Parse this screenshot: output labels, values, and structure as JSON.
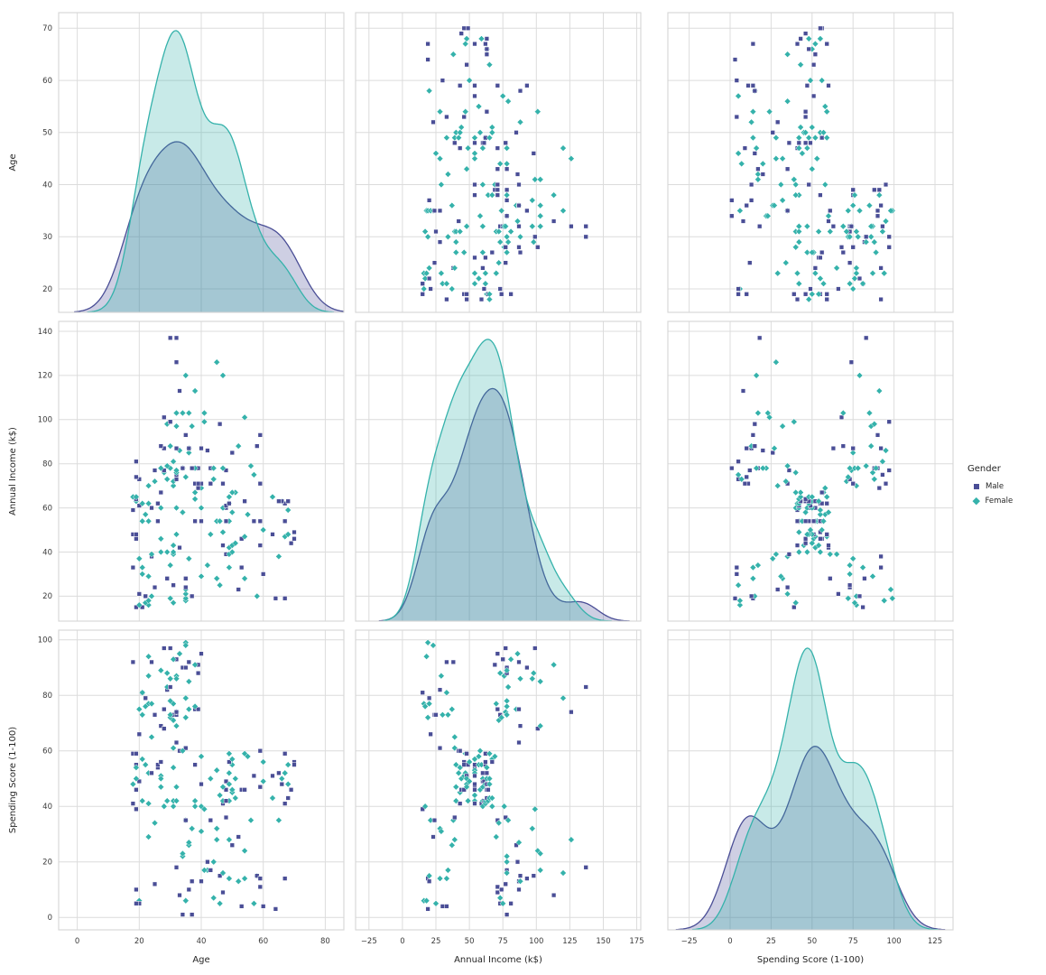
{
  "legend": {
    "title": "Gender",
    "entries": [
      {
        "label": "Male",
        "marker": "square"
      },
      {
        "label": "Female",
        "marker": "diamond"
      }
    ]
  },
  "style": {
    "male_color": "#4a4e96",
    "female_color": "#35b2ab",
    "grid_color": "#dcdcdc",
    "spine_color": "#d5d5d5",
    "text_color": "#3a3a3a",
    "label_color": "#262626",
    "kde_fill_alpha": 0.27
  },
  "chart_data": {
    "type": "scatter",
    "subtype": "pairplot-scatter-matrix",
    "description": "3x3 seaborn-style pairplot of customers: scatter plots off-diagonal, filled KDE curves on the diagonal, colored by Gender (Male=dark blue squares, Female=teal diamonds).",
    "hue_title": "Gender",
    "classes": [
      {
        "code": "M",
        "label": "Male",
        "marker": "square"
      },
      {
        "code": "F",
        "label": "Female",
        "marker": "diamond"
      }
    ],
    "variables": [
      {
        "key": "age",
        "label": "Age",
        "ticks": [
          0,
          20,
          40,
          60,
          80
        ],
        "axis_range": [
          -6,
          86
        ],
        "row_ticks": [
          20,
          30,
          40,
          50,
          60,
          70
        ],
        "row_range": [
          15.5,
          73.0
        ]
      },
      {
        "key": "income",
        "label": "Annual Income (k$)",
        "ticks": [
          -25,
          0,
          25,
          50,
          75,
          100,
          125,
          150,
          175
        ],
        "axis_range": [
          -35,
          178
        ],
        "row_ticks": [
          20,
          40,
          60,
          80,
          100,
          120,
          140
        ],
        "row_range": [
          8.7,
          144.5
        ]
      },
      {
        "key": "score",
        "label": "Spending Score (1-100)",
        "ticks": [
          -25,
          0,
          25,
          50,
          75,
          100,
          125
        ],
        "axis_range": [
          -38,
          136
        ],
        "row_ticks": [
          0,
          20,
          40,
          60,
          80,
          100
        ],
        "row_range": [
          -4.5,
          103.5
        ]
      }
    ],
    "columns": [
      "gender",
      "age",
      "income",
      "score"
    ],
    "records": [
      [
        "M",
        19,
        15,
        39
      ],
      [
        "M",
        21,
        15,
        81
      ],
      [
        "F",
        20,
        16,
        6
      ],
      [
        "F",
        23,
        16,
        77
      ],
      [
        "F",
        31,
        17,
        40
      ],
      [
        "F",
        22,
        17,
        76
      ],
      [
        "F",
        35,
        18,
        6
      ],
      [
        "F",
        23,
        18,
        94
      ],
      [
        "M",
        64,
        19,
        3
      ],
      [
        "F",
        30,
        19,
        72
      ],
      [
        "M",
        67,
        19,
        14
      ],
      [
        "F",
        35,
        19,
        99
      ],
      [
        "F",
        58,
        20,
        15
      ],
      [
        "F",
        24,
        20,
        77
      ],
      [
        "M",
        37,
        20,
        13
      ],
      [
        "M",
        22,
        20,
        79
      ],
      [
        "F",
        35,
        21,
        35
      ],
      [
        "M",
        20,
        21,
        66
      ],
      [
        "M",
        52,
        23,
        29
      ],
      [
        "F",
        35,
        23,
        98
      ],
      [
        "M",
        35,
        24,
        35
      ],
      [
        "M",
        25,
        24,
        73
      ],
      [
        "F",
        46,
        25,
        5
      ],
      [
        "M",
        31,
        25,
        73
      ],
      [
        "F",
        54,
        28,
        14
      ],
      [
        "M",
        29,
        28,
        82
      ],
      [
        "F",
        45,
        28,
        32
      ],
      [
        "M",
        35,
        28,
        61
      ],
      [
        "F",
        40,
        29,
        31
      ],
      [
        "F",
        23,
        29,
        87
      ],
      [
        "M",
        60,
        30,
        4
      ],
      [
        "F",
        21,
        30,
        73
      ],
      [
        "M",
        53,
        33,
        4
      ],
      [
        "M",
        18,
        33,
        92
      ],
      [
        "F",
        49,
        33,
        14
      ],
      [
        "F",
        21,
        33,
        81
      ],
      [
        "F",
        42,
        34,
        17
      ],
      [
        "F",
        30,
        34,
        73
      ],
      [
        "F",
        36,
        37,
        26
      ],
      [
        "F",
        20,
        37,
        75
      ],
      [
        "F",
        65,
        38,
        35
      ],
      [
        "M",
        24,
        38,
        92
      ],
      [
        "M",
        48,
        39,
        36
      ],
      [
        "F",
        31,
        39,
        61
      ],
      [
        "F",
        49,
        39,
        28
      ],
      [
        "F",
        24,
        39,
        65
      ],
      [
        "F",
        50,
        40,
        55
      ],
      [
        "F",
        27,
        40,
        47
      ],
      [
        "F",
        29,
        40,
        42
      ],
      [
        "F",
        31,
        40,
        42
      ],
      [
        "F",
        49,
        42,
        52
      ],
      [
        "M",
        33,
        42,
        60
      ],
      [
        "F",
        31,
        43,
        54
      ],
      [
        "M",
        59,
        43,
        60
      ],
      [
        "F",
        50,
        43,
        45
      ],
      [
        "M",
        47,
        43,
        41
      ],
      [
        "F",
        51,
        44,
        50
      ],
      [
        "M",
        69,
        44,
        46
      ],
      [
        "F",
        27,
        46,
        51
      ],
      [
        "M",
        53,
        46,
        46
      ],
      [
        "M",
        70,
        46,
        56
      ],
      [
        "M",
        19,
        46,
        55
      ],
      [
        "F",
        67,
        47,
        52
      ],
      [
        "F",
        54,
        47,
        59
      ],
      [
        "M",
        63,
        48,
        51
      ],
      [
        "M",
        18,
        48,
        59
      ],
      [
        "F",
        43,
        48,
        50
      ],
      [
        "F",
        68,
        48,
        48
      ],
      [
        "M",
        19,
        48,
        59
      ],
      [
        "F",
        32,
        48,
        47
      ],
      [
        "M",
        70,
        49,
        55
      ],
      [
        "F",
        47,
        49,
        42
      ],
      [
        "F",
        60,
        50,
        49
      ],
      [
        "F",
        60,
        50,
        56
      ],
      [
        "M",
        59,
        54,
        47
      ],
      [
        "M",
        26,
        54,
        54
      ],
      [
        "F",
        45,
        54,
        53
      ],
      [
        "M",
        40,
        54,
        48
      ],
      [
        "F",
        23,
        54,
        52
      ],
      [
        "F",
        49,
        54,
        42
      ],
      [
        "M",
        57,
        54,
        51
      ],
      [
        "M",
        38,
        54,
        55
      ],
      [
        "M",
        67,
        54,
        41
      ],
      [
        "F",
        46,
        54,
        44
      ],
      [
        "F",
        21,
        54,
        57
      ],
      [
        "M",
        48,
        54,
        46
      ],
      [
        "F",
        55,
        57,
        58
      ],
      [
        "F",
        22,
        57,
        55
      ],
      [
        "F",
        34,
        58,
        60
      ],
      [
        "F",
        50,
        58,
        46
      ],
      [
        "F",
        68,
        59,
        55
      ],
      [
        "M",
        18,
        59,
        41
      ],
      [
        "M",
        48,
        60,
        49
      ],
      [
        "F",
        40,
        60,
        40
      ],
      [
        "F",
        32,
        60,
        42
      ],
      [
        "M",
        24,
        60,
        52
      ],
      [
        "F",
        47,
        60,
        47
      ],
      [
        "F",
        27,
        60,
        50
      ],
      [
        "M",
        48,
        61,
        42
      ],
      [
        "M",
        20,
        61,
        49
      ],
      [
        "F",
        23,
        62,
        41
      ],
      [
        "F",
        49,
        62,
        48
      ],
      [
        "M",
        67,
        62,
        59
      ],
      [
        "M",
        26,
        62,
        55
      ],
      [
        "M",
        49,
        62,
        56
      ],
      [
        "F",
        21,
        62,
        42
      ],
      [
        "F",
        66,
        63,
        50
      ],
      [
        "M",
        54,
        63,
        46
      ],
      [
        "M",
        68,
        63,
        43
      ],
      [
        "M",
        66,
        63,
        48
      ],
      [
        "M",
        65,
        63,
        52
      ],
      [
        "F",
        19,
        63,
        54
      ],
      [
        "F",
        38,
        64,
        42
      ],
      [
        "M",
        19,
        64,
        46
      ],
      [
        "F",
        18,
        65,
        48
      ],
      [
        "F",
        19,
        65,
        50
      ],
      [
        "F",
        63,
        65,
        43
      ],
      [
        "F",
        49,
        65,
        59
      ],
      [
        "F",
        51,
        67,
        43
      ],
      [
        "F",
        50,
        67,
        57
      ],
      [
        "M",
        27,
        67,
        56
      ],
      [
        "F",
        38,
        67,
        40
      ],
      [
        "F",
        40,
        69,
        58
      ],
      [
        "M",
        39,
        69,
        91
      ],
      [
        "F",
        23,
        70,
        29
      ],
      [
        "F",
        31,
        70,
        77
      ],
      [
        "M",
        43,
        71,
        35
      ],
      [
        "M",
        40,
        71,
        95
      ],
      [
        "M",
        59,
        71,
        11
      ],
      [
        "M",
        38,
        71,
        75
      ],
      [
        "M",
        47,
        71,
        9
      ],
      [
        "M",
        39,
        71,
        75
      ],
      [
        "F",
        25,
        72,
        34
      ],
      [
        "F",
        31,
        72,
        71
      ],
      [
        "M",
        20,
        73,
        5
      ],
      [
        "F",
        29,
        73,
        88
      ],
      [
        "F",
        44,
        73,
        7
      ],
      [
        "M",
        32,
        73,
        73
      ],
      [
        "M",
        19,
        74,
        10
      ],
      [
        "F",
        35,
        74,
        72
      ],
      [
        "F",
        57,
        75,
        5
      ],
      [
        "M",
        32,
        75,
        93
      ],
      [
        "F",
        28,
        76,
        40
      ],
      [
        "F",
        32,
        76,
        87
      ],
      [
        "M",
        25,
        77,
        12
      ],
      [
        "M",
        28,
        77,
        97
      ],
      [
        "M",
        48,
        77,
        36
      ],
      [
        "F",
        32,
        77,
        74
      ],
      [
        "F",
        34,
        78,
        22
      ],
      [
        "M",
        34,
        78,
        90
      ],
      [
        "M",
        43,
        78,
        17
      ],
      [
        "M",
        39,
        78,
        88
      ],
      [
        "F",
        44,
        78,
        20
      ],
      [
        "F",
        38,
        78,
        76
      ],
      [
        "F",
        47,
        78,
        16
      ],
      [
        "F",
        27,
        78,
        89
      ],
      [
        "M",
        37,
        78,
        1
      ],
      [
        "F",
        30,
        78,
        78
      ],
      [
        "M",
        34,
        78,
        1
      ],
      [
        "F",
        30,
        78,
        73
      ],
      [
        "F",
        56,
        79,
        35
      ],
      [
        "F",
        29,
        79,
        83
      ],
      [
        "M",
        19,
        81,
        5
      ],
      [
        "F",
        31,
        81,
        93
      ],
      [
        "M",
        50,
        85,
        26
      ],
      [
        "F",
        36,
        85,
        75
      ],
      [
        "M",
        42,
        86,
        20
      ],
      [
        "F",
        33,
        86,
        95
      ],
      [
        "F",
        36,
        87,
        27
      ],
      [
        "M",
        32,
        87,
        63
      ],
      [
        "M",
        40,
        87,
        13
      ],
      [
        "M",
        28,
        87,
        75
      ],
      [
        "M",
        36,
        87,
        10
      ],
      [
        "M",
        36,
        87,
        92
      ],
      [
        "F",
        52,
        88,
        13
      ],
      [
        "F",
        30,
        88,
        86
      ],
      [
        "M",
        58,
        88,
        15
      ],
      [
        "M",
        27,
        88,
        69
      ],
      [
        "M",
        59,
        93,
        14
      ],
      [
        "M",
        35,
        93,
        90
      ],
      [
        "F",
        37,
        97,
        32
      ],
      [
        "F",
        32,
        97,
        86
      ],
      [
        "M",
        46,
        98,
        15
      ],
      [
        "F",
        29,
        98,
        88
      ],
      [
        "F",
        41,
        99,
        39
      ],
      [
        "M",
        30,
        99,
        97
      ],
      [
        "F",
        54,
        101,
        24
      ],
      [
        "M",
        28,
        101,
        68
      ],
      [
        "F",
        41,
        103,
        17
      ],
      [
        "F",
        36,
        103,
        85
      ],
      [
        "F",
        34,
        103,
        23
      ],
      [
        "F",
        32,
        103,
        69
      ],
      [
        "M",
        33,
        113,
        8
      ],
      [
        "F",
        38,
        113,
        91
      ],
      [
        "F",
        47,
        120,
        16
      ],
      [
        "F",
        35,
        120,
        79
      ],
      [
        "F",
        45,
        126,
        28
      ],
      [
        "M",
        32,
        126,
        74
      ],
      [
        "M",
        32,
        137,
        18
      ],
      [
        "M",
        30,
        137,
        83
      ]
    ]
  }
}
